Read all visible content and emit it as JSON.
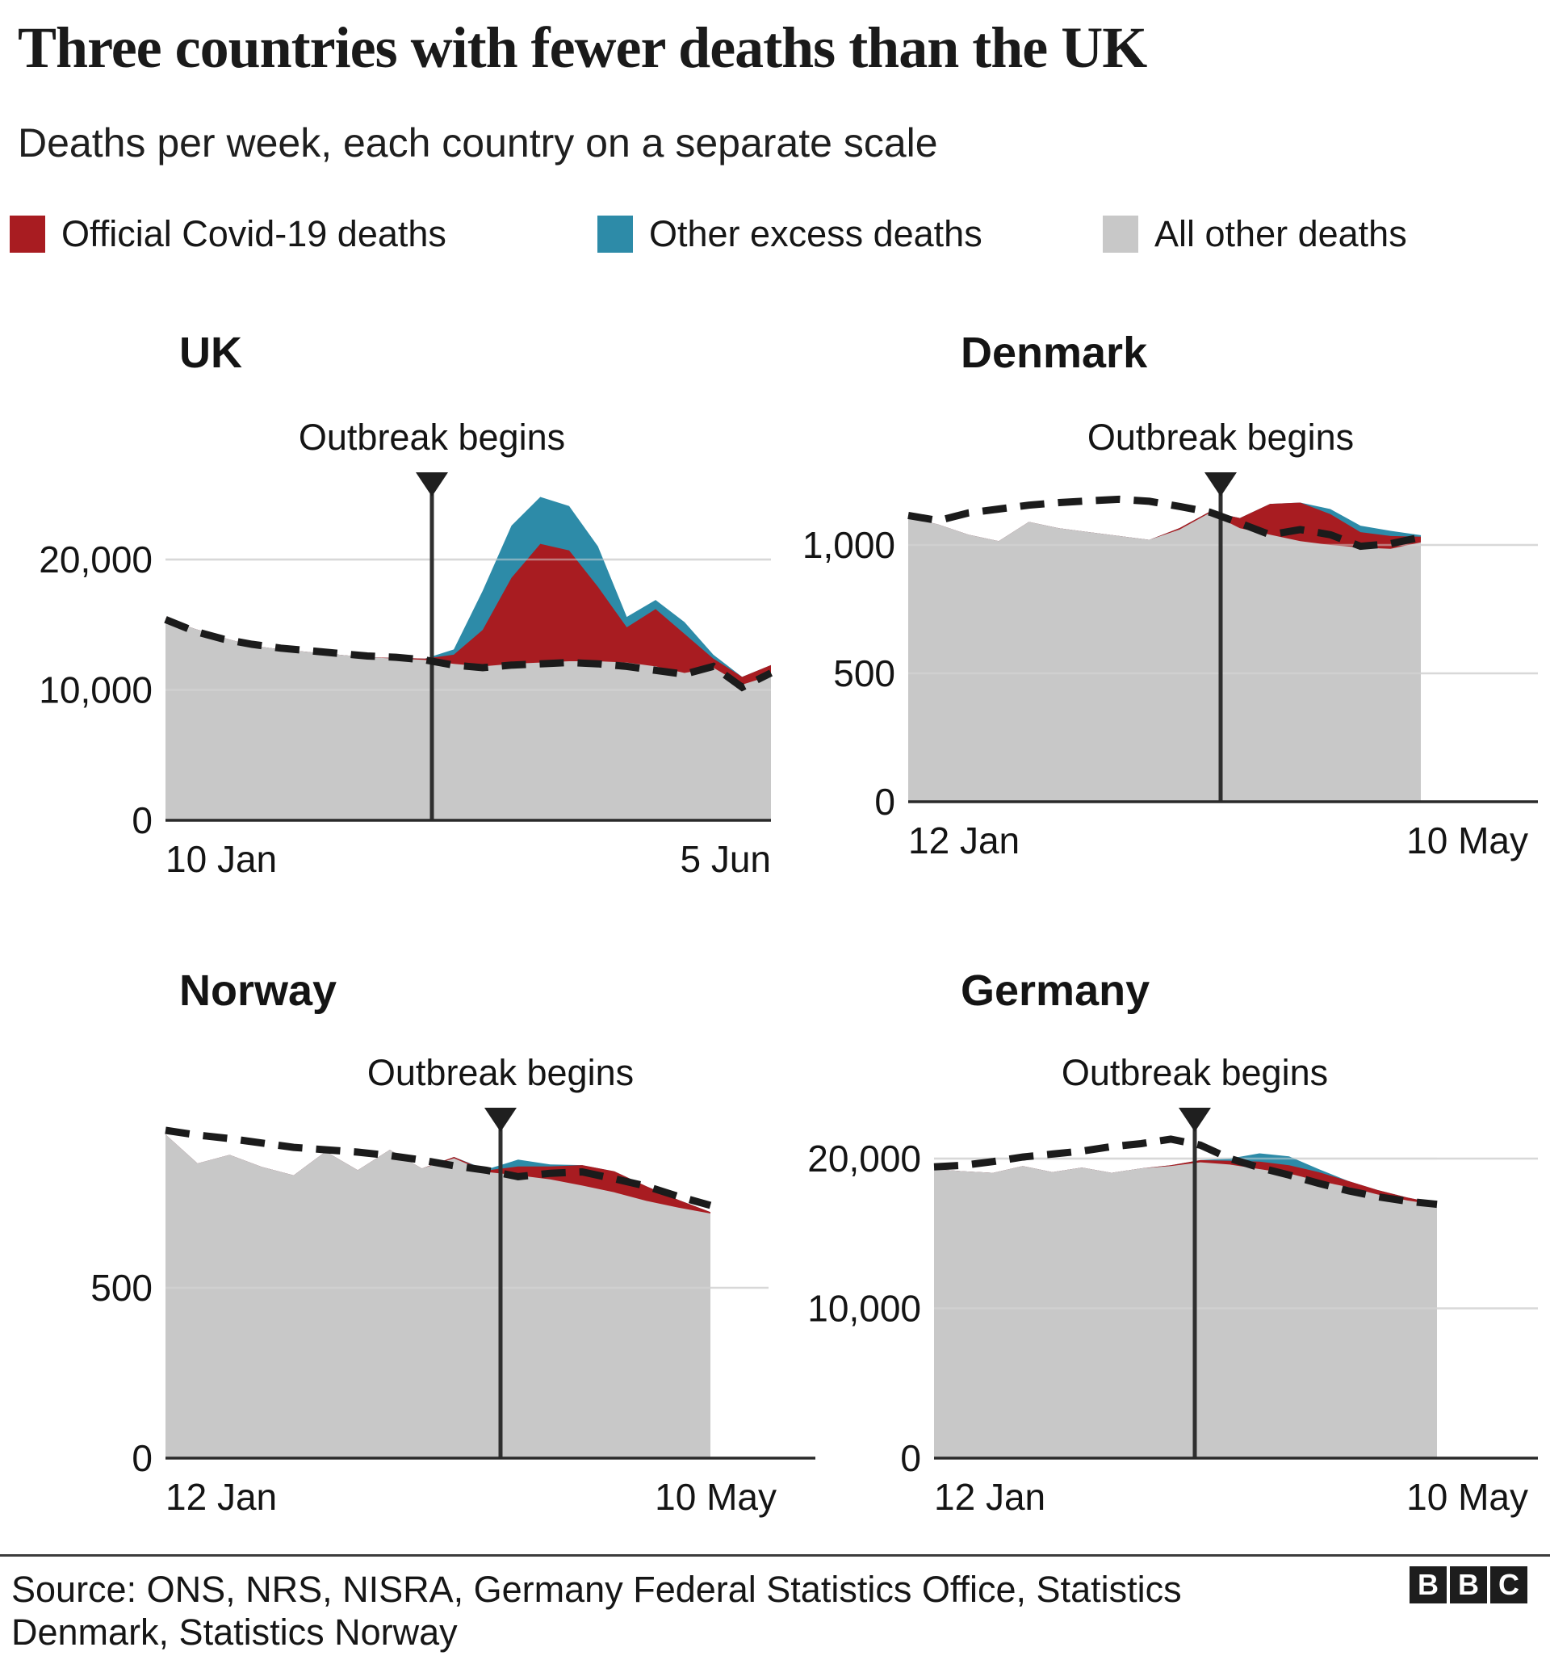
{
  "page": {
    "title": "Three countries with fewer deaths than the UK",
    "subtitle": "Deaths per week, each country on a separate scale"
  },
  "colors": {
    "covid": "#a81c21",
    "excess": "#2d8ba8",
    "other": "#c8c8c8",
    "grid": "#d8d8d8",
    "axis": "#2a2a2a",
    "dashed": "#1b1b1b",
    "marker": "#2f2f2f"
  },
  "legend": [
    {
      "label": "Official Covid-19 deaths",
      "color_key": "covid"
    },
    {
      "label": "Other excess deaths",
      "color_key": "excess"
    },
    {
      "label": "All other deaths",
      "color_key": "other"
    }
  ],
  "footer": {
    "line1": "Source: ONS, NRS, NISRA, Germany Federal Statistics Office, Statistics",
    "line2": "Denmark, Statistics Norway",
    "logo_letters": [
      "B",
      "B",
      "C"
    ]
  },
  "chart_data": [
    {
      "type": "area",
      "key": "uk",
      "title": "UK",
      "annotation": "Outbreak begins",
      "x_start_label": "10 Jan",
      "x_end_label": "5 Jun",
      "outbreak_week_index": 9.2,
      "y_ticks": [
        {
          "value": 0,
          "label": "0"
        },
        {
          "value": 10000,
          "label": "10,000"
        },
        {
          "value": 20000,
          "label": "20,000"
        }
      ],
      "series": {
        "all_other_deaths": [
          15500,
          14700,
          14000,
          13400,
          13100,
          12900,
          12700,
          12500,
          12400,
          12300,
          12000,
          11800,
          12000,
          12100,
          12200,
          12200,
          12100,
          11800,
          11300,
          11700,
          10400,
          11100
        ],
        "covid_total": [
          15500,
          14700,
          14000,
          13400,
          13100,
          12900,
          12700,
          12500,
          12450,
          12400,
          12700,
          14600,
          18600,
          21200,
          20700,
          17900,
          14800,
          16200,
          14300,
          12400,
          11000,
          11900
        ],
        "other_excess_total": [
          15500,
          14700,
          14000,
          13400,
          13100,
          12900,
          12700,
          12500,
          12450,
          12400,
          13100,
          17600,
          22600,
          24800,
          24100,
          21000,
          15600,
          16900,
          15200,
          12700,
          11000,
          11900
        ],
        "dashed_line": [
          15400,
          14500,
          13900,
          13500,
          13200,
          13000,
          12800,
          12600,
          12500,
          12300,
          11900,
          11700,
          11900,
          12000,
          12100,
          12000,
          11800,
          11500,
          11200,
          11800,
          10200,
          11300
        ]
      }
    },
    {
      "type": "area",
      "key": "denmark",
      "title": "Denmark",
      "annotation": "Outbreak begins",
      "x_start_label": "12 Jan",
      "x_end_label": "10 May",
      "outbreak_week_index": 10.4,
      "y_ticks": [
        {
          "value": 0,
          "label": "0"
        },
        {
          "value": 500,
          "label": "500"
        },
        {
          "value": 1000,
          "label": "1,000"
        }
      ],
      "series": {
        "all_other_deaths": [
          1110,
          1080,
          1040,
          1015,
          1090,
          1065,
          1050,
          1035,
          1020,
          1060,
          1125,
          1065,
          1040,
          1015,
          1000,
          990,
          985,
          1010
        ],
        "covid_total": [
          1110,
          1080,
          1040,
          1015,
          1090,
          1065,
          1050,
          1035,
          1020,
          1066,
          1130,
          1105,
          1160,
          1165,
          1120,
          1050,
          1035,
          1032
        ],
        "other_excess_total": [
          1110,
          1080,
          1040,
          1015,
          1090,
          1065,
          1050,
          1035,
          1020,
          1066,
          1130,
          1105,
          1160,
          1165,
          1140,
          1075,
          1055,
          1038
        ],
        "dashed_line": [
          1115,
          1095,
          1125,
          1140,
          1155,
          1165,
          1172,
          1178,
          1170,
          1150,
          1128,
          1085,
          1040,
          1060,
          1040,
          995,
          1005,
          1030
        ]
      }
    },
    {
      "type": "area",
      "key": "norway",
      "title": "Norway",
      "annotation": "Outbreak begins",
      "x_start_label": "12 Jan",
      "x_end_label": "10 May",
      "outbreak_week_index": 10.5,
      "y_ticks": [
        {
          "value": 0,
          "label": "0"
        },
        {
          "value": 500,
          "label": "500"
        }
      ],
      "series": {
        "all_other_deaths": [
          950,
          865,
          890,
          855,
          830,
          900,
          845,
          905,
          850,
          880,
          840,
          830,
          818,
          800,
          780,
          755,
          735,
          718
        ],
        "covid_total": [
          950,
          865,
          890,
          855,
          830,
          900,
          845,
          905,
          850,
          884,
          844,
          856,
          856,
          860,
          842,
          798,
          758,
          722
        ],
        "other_excess_total": [
          950,
          865,
          890,
          855,
          830,
          900,
          845,
          905,
          850,
          884,
          847,
          876,
          862,
          860,
          842,
          798,
          758,
          722
        ],
        "dashed_line": [
          962,
          948,
          938,
          925,
          912,
          905,
          898,
          888,
          875,
          858,
          845,
          826,
          836,
          840,
          820,
          798,
          768,
          742
        ]
      }
    },
    {
      "type": "area",
      "key": "germany",
      "title": "Germany",
      "annotation": "Outbreak begins",
      "x_start_label": "12 Jan",
      "x_end_label": "10 May",
      "outbreak_week_index": 8.8,
      "y_ticks": [
        {
          "value": 0,
          "label": "0"
        },
        {
          "value": 10000,
          "label": "10,000"
        },
        {
          "value": 20000,
          "label": "20,000"
        }
      ],
      "series": {
        "all_other_deaths": [
          19300,
          19150,
          19050,
          19500,
          19100,
          19400,
          19050,
          19350,
          19500,
          19750,
          19600,
          19300,
          19000,
          18500,
          18100,
          17600,
          17200,
          16900
        ],
        "covid_total": [
          19300,
          19150,
          19050,
          19500,
          19100,
          19400,
          19050,
          19350,
          19550,
          19900,
          19850,
          19800,
          19550,
          19100,
          18500,
          17900,
          17400,
          17000
        ],
        "other_excess_total": [
          19300,
          19150,
          19050,
          19500,
          19100,
          19400,
          19050,
          19350,
          19550,
          19900,
          20000,
          20350,
          20150,
          19300,
          18500,
          17900,
          17400,
          17000
        ],
        "dashed_line": [
          19450,
          19550,
          19800,
          20100,
          20300,
          20500,
          20800,
          21000,
          21300,
          20900,
          20000,
          19400,
          18900,
          18350,
          17850,
          17450,
          17150,
          16950
        ]
      }
    }
  ]
}
